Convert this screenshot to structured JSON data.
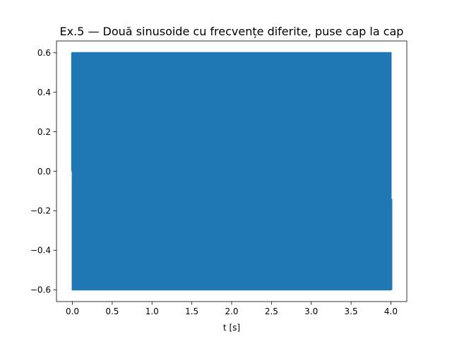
{
  "chart_data": {
    "type": "line",
    "title": "Ex.5 — Două sinusoide cu frecvențe diferite, puse cap la cap",
    "xlabel": "t [s]",
    "ylabel": "",
    "xlim": [
      -0.2,
      4.2
    ],
    "ylim": [
      -0.66,
      0.66
    ],
    "xticks": [
      0.0,
      0.5,
      1.0,
      1.5,
      2.0,
      2.5,
      3.0,
      3.5,
      4.0
    ],
    "xtick_labels": [
      "0.0",
      "0.5",
      "1.0",
      "1.5",
      "2.0",
      "2.5",
      "3.0",
      "3.5",
      "4.0"
    ],
    "yticks": [
      -0.6,
      -0.4,
      -0.2,
      0.0,
      0.2,
      0.4,
      0.6
    ],
    "ytick_labels": [
      "−0.6",
      "−0.4",
      "−0.2",
      "0.0",
      "0.2",
      "0.4",
      "0.6"
    ],
    "grid": false,
    "legend": "none",
    "series": [
      {
        "color": "#1f77b4",
        "amplitude": 0.6,
        "x_start": 0.0,
        "x_end": 4.0,
        "y_start": 0.0,
        "y_end": -0.14
      }
    ]
  }
}
